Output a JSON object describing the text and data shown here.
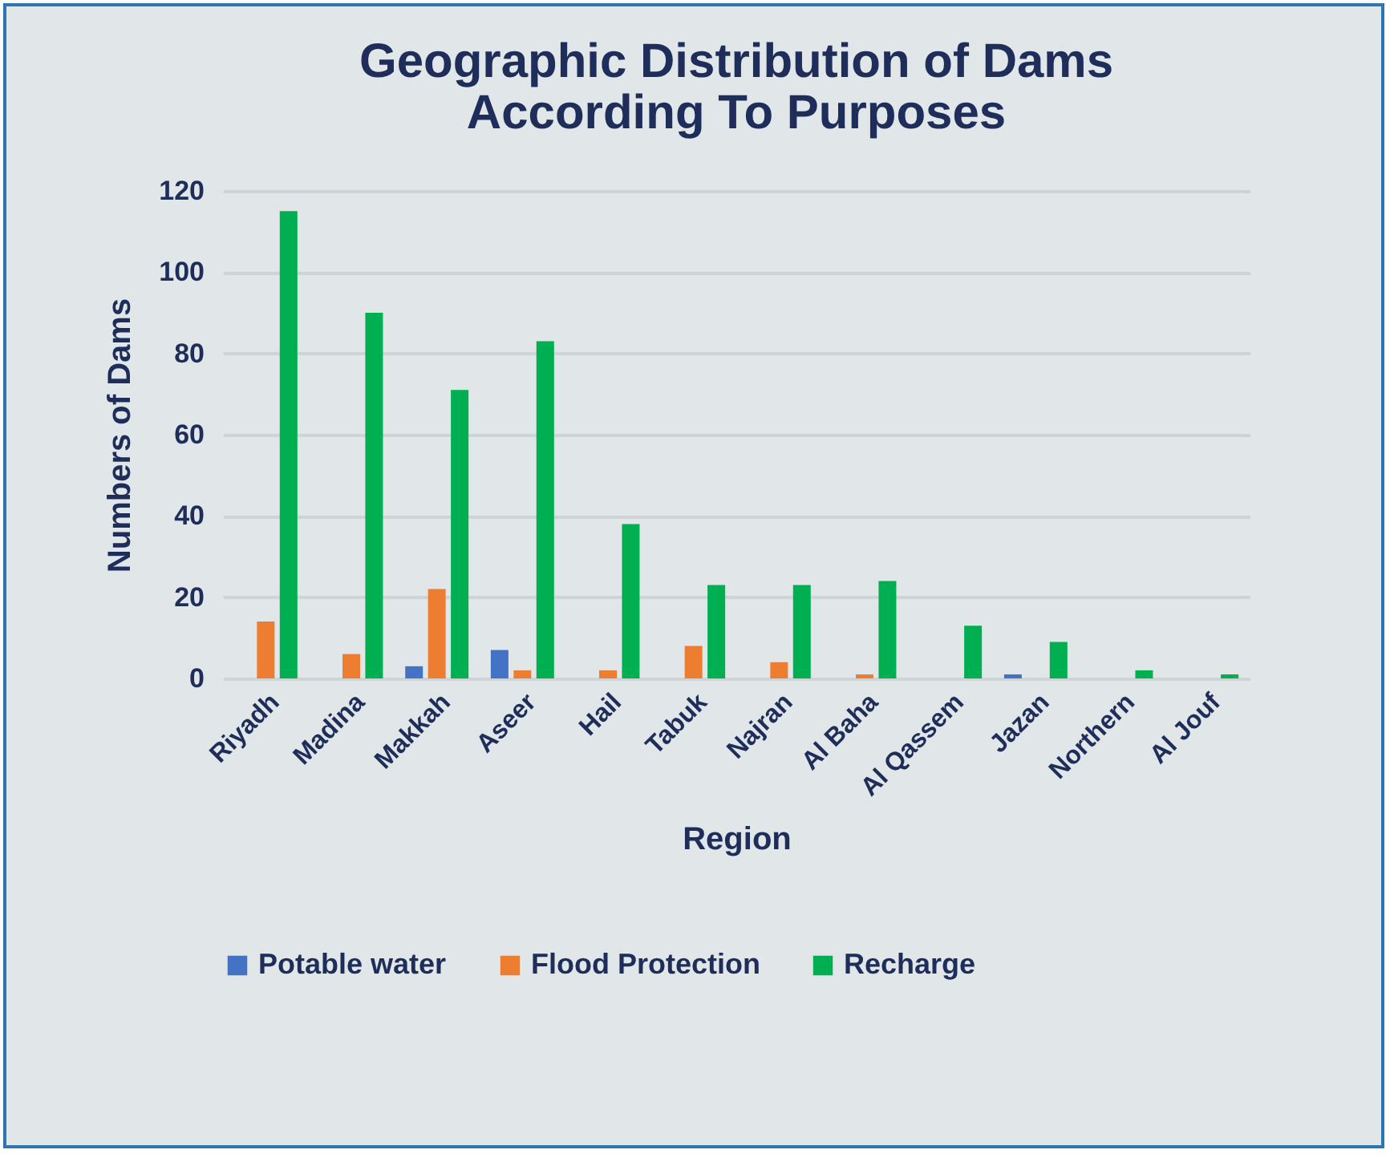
{
  "chart_data": {
    "type": "bar",
    "title": "Geographic Distribution of Dams According To Purposes",
    "xlabel": "Region",
    "ylabel": "Numbers of Dams",
    "categories": [
      "Riyadh",
      "Madina",
      "Makkah",
      "Aseer",
      "Hail",
      "Tabuk",
      "Najran",
      "Al Baha",
      "Al Qassem",
      "Jazan",
      "Northern",
      "Al Jouf"
    ],
    "series": [
      {
        "name": "Potable water",
        "color": "#4472c4",
        "values": [
          0,
          0,
          3,
          7,
          0,
          0,
          0,
          0,
          0,
          1,
          0,
          0
        ]
      },
      {
        "name": "Flood Protection",
        "color": "#ed7d31",
        "values": [
          14,
          6,
          22,
          2,
          2,
          8,
          4,
          1,
          0,
          0,
          0,
          0
        ]
      },
      {
        "name": "Recharge",
        "color": "#00b050",
        "values": [
          115,
          90,
          71,
          83,
          38,
          23,
          23,
          24,
          13,
          9,
          2,
          1
        ]
      }
    ],
    "ylim": [
      0,
      120
    ],
    "yticks": [
      0,
      20,
      40,
      60,
      80,
      100,
      120
    ],
    "grid": "y",
    "legend": "bottom"
  }
}
